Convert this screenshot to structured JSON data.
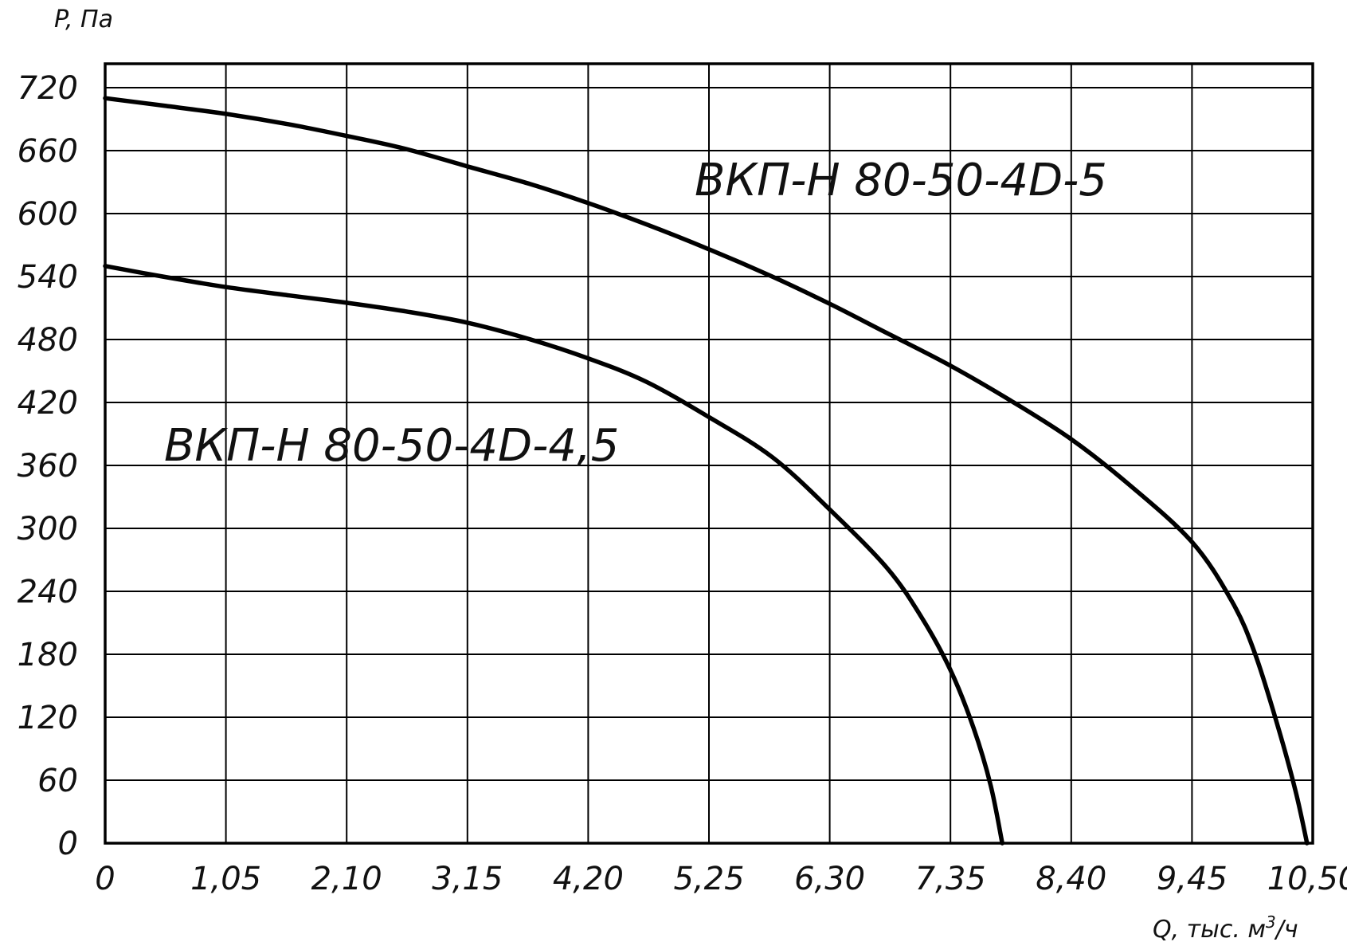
{
  "chart_data": {
    "type": "line",
    "title": "",
    "ylabel": "P, Па",
    "xlabel": "Q, тыс. м",
    "xlabel_sup": "3",
    "xlabel_suffix": "/ч",
    "xlim": [
      0,
      10.5
    ],
    "ylim": [
      0,
      720
    ],
    "grid": true,
    "x_ticks": [
      0,
      1.05,
      2.1,
      3.15,
      4.2,
      5.25,
      6.3,
      7.35,
      8.4,
      9.45,
      10.5
    ],
    "x_tick_labels": [
      "0",
      "1,05",
      "2,10",
      "3,15",
      "4,20",
      "5,25",
      "6,30",
      "7,35",
      "8,40",
      "9,45",
      "10,50"
    ],
    "y_ticks": [
      0,
      60,
      120,
      180,
      240,
      300,
      360,
      420,
      480,
      540,
      600,
      660,
      720
    ],
    "y_tick_labels": [
      "0",
      "60",
      "120",
      "180",
      "240",
      "300",
      "360",
      "420",
      "480",
      "540",
      "600",
      "660",
      "720"
    ],
    "series": [
      {
        "name": "ВКП-Н 80-50-4D-5",
        "color": "#000000",
        "points": [
          [
            0,
            710
          ],
          [
            0.5,
            703
          ],
          [
            1.05,
            695
          ],
          [
            1.6,
            685
          ],
          [
            2.1,
            674
          ],
          [
            2.6,
            662
          ],
          [
            3.15,
            645
          ],
          [
            3.7,
            628
          ],
          [
            4.2,
            610
          ],
          [
            4.7,
            590
          ],
          [
            5.25,
            566
          ],
          [
            5.8,
            540
          ],
          [
            6.3,
            514
          ],
          [
            6.8,
            486
          ],
          [
            7.35,
            455
          ],
          [
            7.9,
            420
          ],
          [
            8.4,
            385
          ],
          [
            8.9,
            342
          ],
          [
            9.45,
            287
          ],
          [
            9.8,
            230
          ],
          [
            10.0,
            180
          ],
          [
            10.2,
            110
          ],
          [
            10.35,
            50
          ],
          [
            10.45,
            0
          ]
        ]
      },
      {
        "name": "ВКП-Н 80-50-4D-4,5",
        "color": "#000000",
        "points": [
          [
            0,
            550
          ],
          [
            0.5,
            540
          ],
          [
            1.05,
            530
          ],
          [
            1.6,
            522
          ],
          [
            2.1,
            515
          ],
          [
            2.6,
            507
          ],
          [
            3.15,
            496
          ],
          [
            3.7,
            480
          ],
          [
            4.2,
            462
          ],
          [
            4.7,
            440
          ],
          [
            5.25,
            406
          ],
          [
            5.8,
            368
          ],
          [
            6.3,
            318
          ],
          [
            6.8,
            262
          ],
          [
            7.1,
            215
          ],
          [
            7.35,
            165
          ],
          [
            7.55,
            110
          ],
          [
            7.7,
            55
          ],
          [
            7.8,
            0
          ]
        ]
      }
    ]
  }
}
